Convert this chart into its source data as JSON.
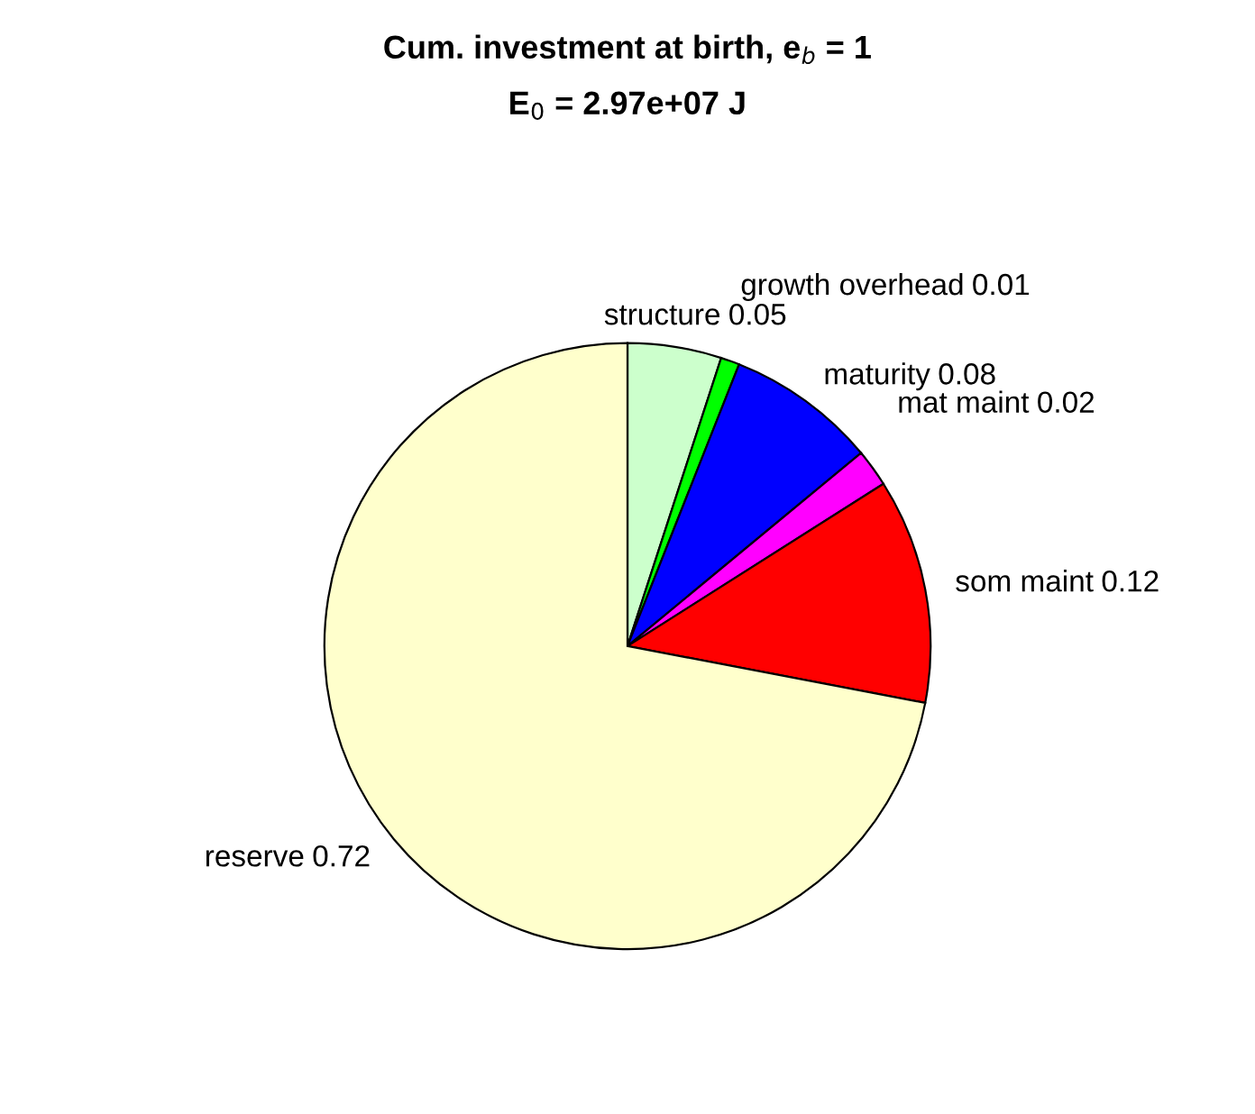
{
  "chart_data": {
    "type": "pie",
    "title": "Cum. investment at birth, e$_{b}$ = 1",
    "subtitle": "E$_{0}$ = 2.97e+07 J",
    "categories": [
      "structure",
      "growth overhead",
      "maturity",
      "mat maint",
      "som maint",
      "reserve"
    ],
    "values": [
      0.05,
      0.01,
      0.08,
      0.02,
      0.12,
      0.72
    ],
    "colors": [
      "#ccffcc",
      "#00ff00",
      "#0000ff",
      "#ff00ff",
      "#ff0000",
      "#ffffcc"
    ],
    "data_labels": true,
    "legend": false
  }
}
